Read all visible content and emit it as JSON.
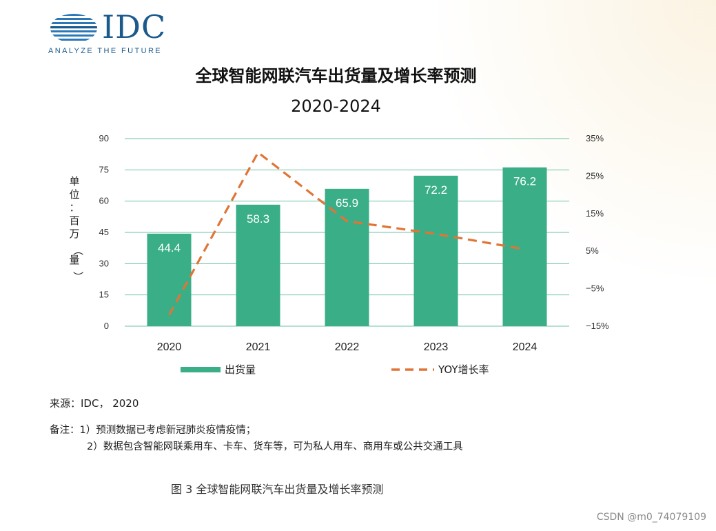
{
  "logo": {
    "wordmark": "IDC",
    "tagline": "ANALYZE THE FUTURE"
  },
  "colors": {
    "bar": "#3aae87",
    "line": "#e07537",
    "brand": "#1b5a8c"
  },
  "chart_data": {
    "type": "bar",
    "title": "全球智能网联汽车出货量及增长率预测",
    "subtitle": "2020-2024",
    "categories": [
      "2020",
      "2021",
      "2022",
      "2023",
      "2024"
    ],
    "series": [
      {
        "name": "出货量",
        "type": "bar",
        "axis": "left",
        "values": [
          44.4,
          58.3,
          65.9,
          72.2,
          76.2
        ],
        "labels": [
          "44.4",
          "58.3",
          "65.9",
          "72.2",
          "76.2"
        ]
      },
      {
        "name": "YOY增长率",
        "type": "line",
        "style": "dashed",
        "axis": "right",
        "values": [
          -12,
          31.3,
          13,
          9.6,
          5.5
        ]
      }
    ],
    "ylabel": "单位：百万（量）",
    "ylim": [
      0,
      90
    ],
    "yticks": [
      "0",
      "15",
      "30",
      "45",
      "60",
      "75",
      "90"
    ],
    "y2lim": [
      -15,
      35
    ],
    "y2ticks": [
      "−15%",
      "−5%",
      "5%",
      "15%",
      "25%",
      "35%"
    ],
    "legend_position": "bottom",
    "grid": true
  },
  "footer": {
    "source": "来源：IDC， 2020",
    "note1": "备注：1）预测数据已考虑新冠肺炎疫情疫情；",
    "note2": "2）数据包含智能网联乘用车、卡车、货车等，可为私人用车、商用车或公共交通工具",
    "caption": "图 3 全球智能网联汽车出货量及增长率预测",
    "watermark": "CSDN @m0_74079109"
  }
}
